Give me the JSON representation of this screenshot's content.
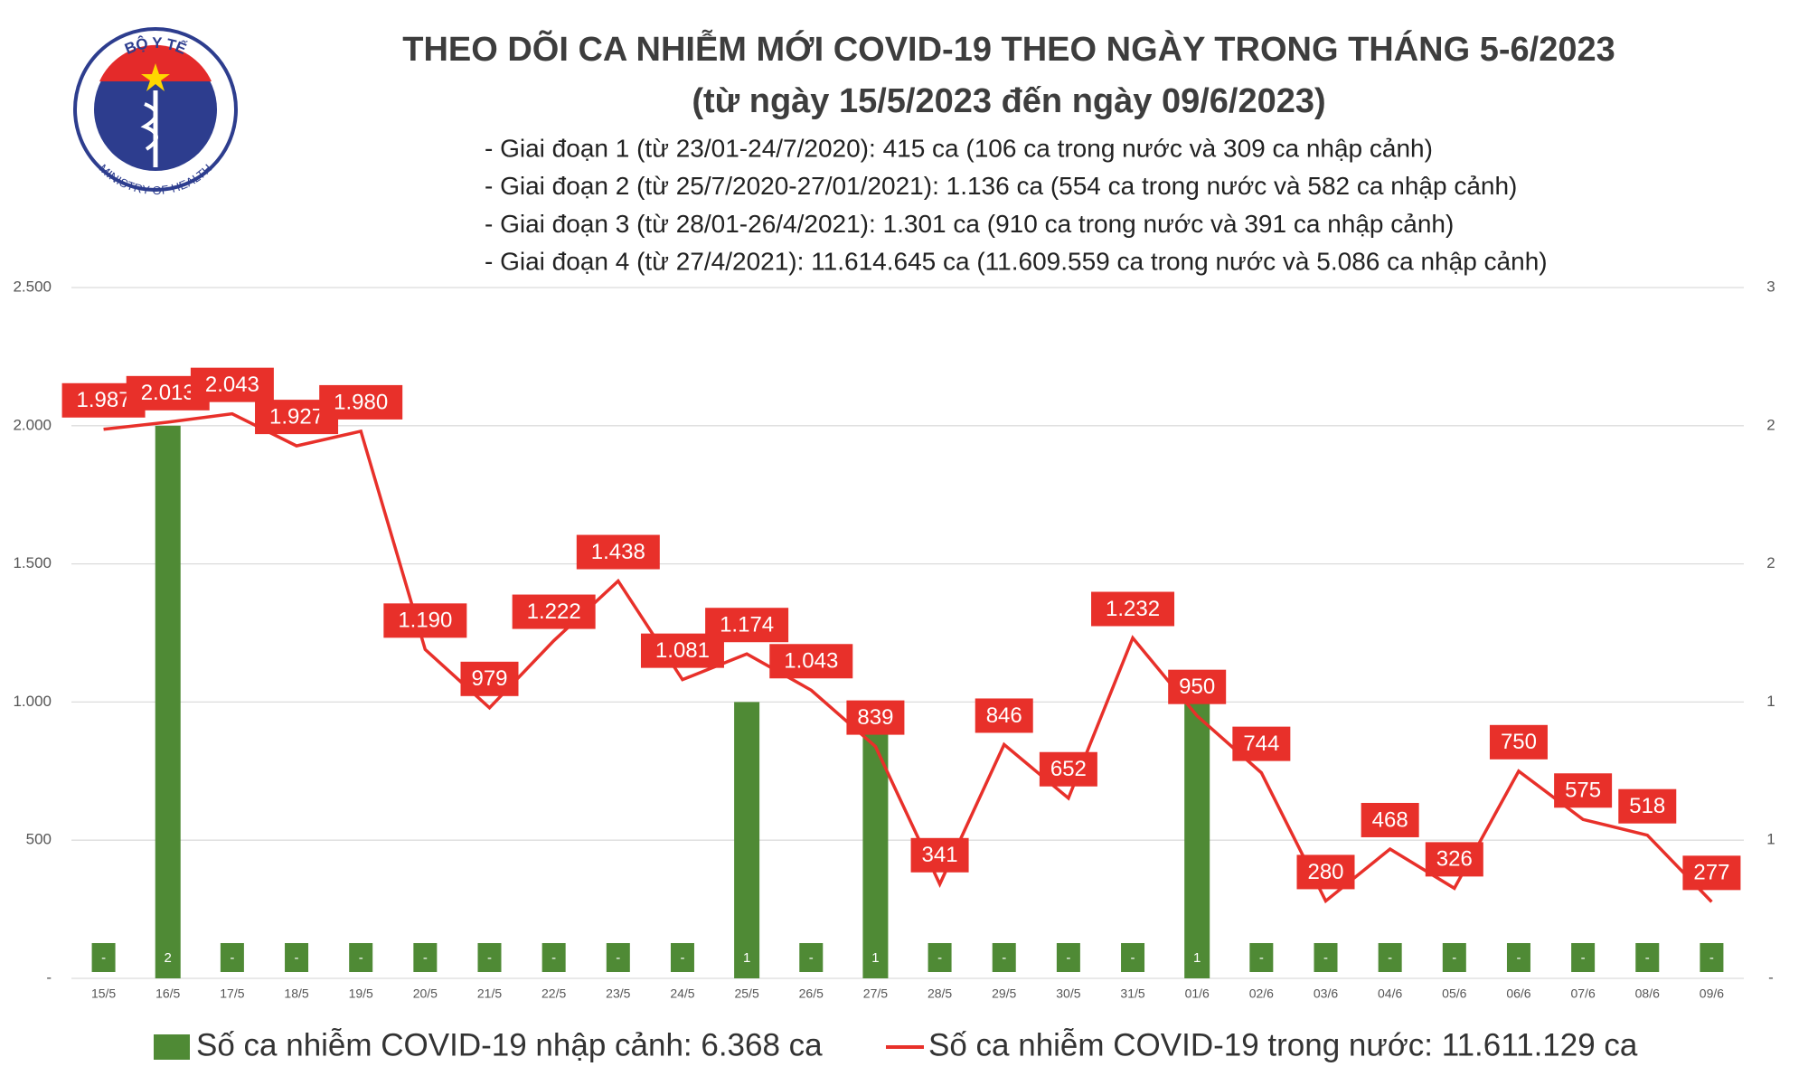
{
  "chart_data": {
    "type": "combo",
    "title": "THEO DÕI CA NHIỄM MỚI COVID-19 THEO NGÀY TRONG THÁNG 5-6/2023",
    "subtitle": "(từ ngày 15/5/2023 đến ngày 09/6/2023)",
    "logo_text": [
      "BỘ Y TẾ",
      "MINISTRY OF HEALTH"
    ],
    "notes": [
      "- Giai đoạn 1 (từ 23/01-24/7/2020): 415 ca (106 ca trong nước và 309 ca nhập cảnh)",
      "- Giai đoạn 2 (từ 25/7/2020-27/01/2021): 1.136 ca (554 ca trong nước và 582 ca nhập cảnh)",
      "- Giai đoạn 3 (từ 28/01-26/4/2021): 1.301 ca (910 ca trong nước và 391 ca nhập cảnh)",
      "- Giai đoạn 4 (từ 27/4/2021): 11.614.645 ca (11.609.559 ca trong nước và 5.086 ca nhập cảnh)"
    ],
    "categories": [
      "15/5",
      "16/5",
      "17/5",
      "18/5",
      "19/5",
      "20/5",
      "21/5",
      "22/5",
      "23/5",
      "24/5",
      "25/5",
      "26/5",
      "27/5",
      "28/5",
      "29/5",
      "30/5",
      "31/5",
      "01/6",
      "02/6",
      "03/6",
      "04/6",
      "05/6",
      "06/6",
      "07/6",
      "08/6",
      "09/6"
    ],
    "series": [
      {
        "name": "Số ca nhiễm COVID-19 nhập cảnh: 6.368 ca",
        "type": "bar",
        "axis": "y2",
        "color": "#4f8a35",
        "values": [
          0,
          2,
          0,
          0,
          0,
          0,
          0,
          0,
          0,
          0,
          1,
          0,
          1,
          0,
          0,
          0,
          0,
          1,
          0,
          0,
          0,
          0,
          0,
          0,
          0,
          0
        ],
        "value_labels": [
          "-",
          "2",
          "-",
          "-",
          "-",
          "-",
          "-",
          "-",
          "-",
          "-",
          "1",
          "-",
          "1",
          "-",
          "-",
          "-",
          "-",
          "1",
          "-",
          "-",
          "-",
          "-",
          "-",
          "-",
          "-",
          "-"
        ]
      },
      {
        "name": "Số ca nhiễm COVID-19 trong nước: 11.611.129 ca",
        "type": "line",
        "color": "#e8302a",
        "values": [
          1987,
          2013,
          2043,
          1927,
          1980,
          1190,
          979,
          1222,
          1438,
          1081,
          1174,
          1043,
          839,
          341,
          846,
          652,
          1232,
          950,
          744,
          280,
          468,
          326,
          750,
          575,
          518,
          277
        ],
        "value_labels": [
          "1.987",
          "2.013",
          "2.043",
          "1.927",
          "1.980",
          "1.190",
          "979",
          "1.222",
          "1.438",
          "1.081",
          "1.174",
          "1.043",
          "839",
          "341",
          "846",
          "652",
          "1.232",
          "950",
          "744",
          "280",
          "468",
          "326",
          "750",
          "575",
          "518",
          "277"
        ]
      }
    ],
    "ylim": [
      0,
      2500
    ],
    "yticks": [
      {
        "value": 0,
        "label": "-"
      },
      500,
      {
        "value": 1000,
        "label": "1.000"
      },
      {
        "value": 1500,
        "label": "1.500"
      },
      {
        "value": 2000,
        "label": "2.000"
      },
      {
        "value": 2500,
        "label": "2.500"
      }
    ],
    "y2lim": [
      0,
      2.5
    ],
    "y2ticks": [
      {
        "value": 0,
        "label": "-"
      },
      {
        "value": 0.5,
        "label": "1"
      },
      1,
      {
        "value": 1.5,
        "label": "2"
      },
      2,
      {
        "value": 2.5,
        "label": "3"
      }
    ],
    "grid": true
  }
}
